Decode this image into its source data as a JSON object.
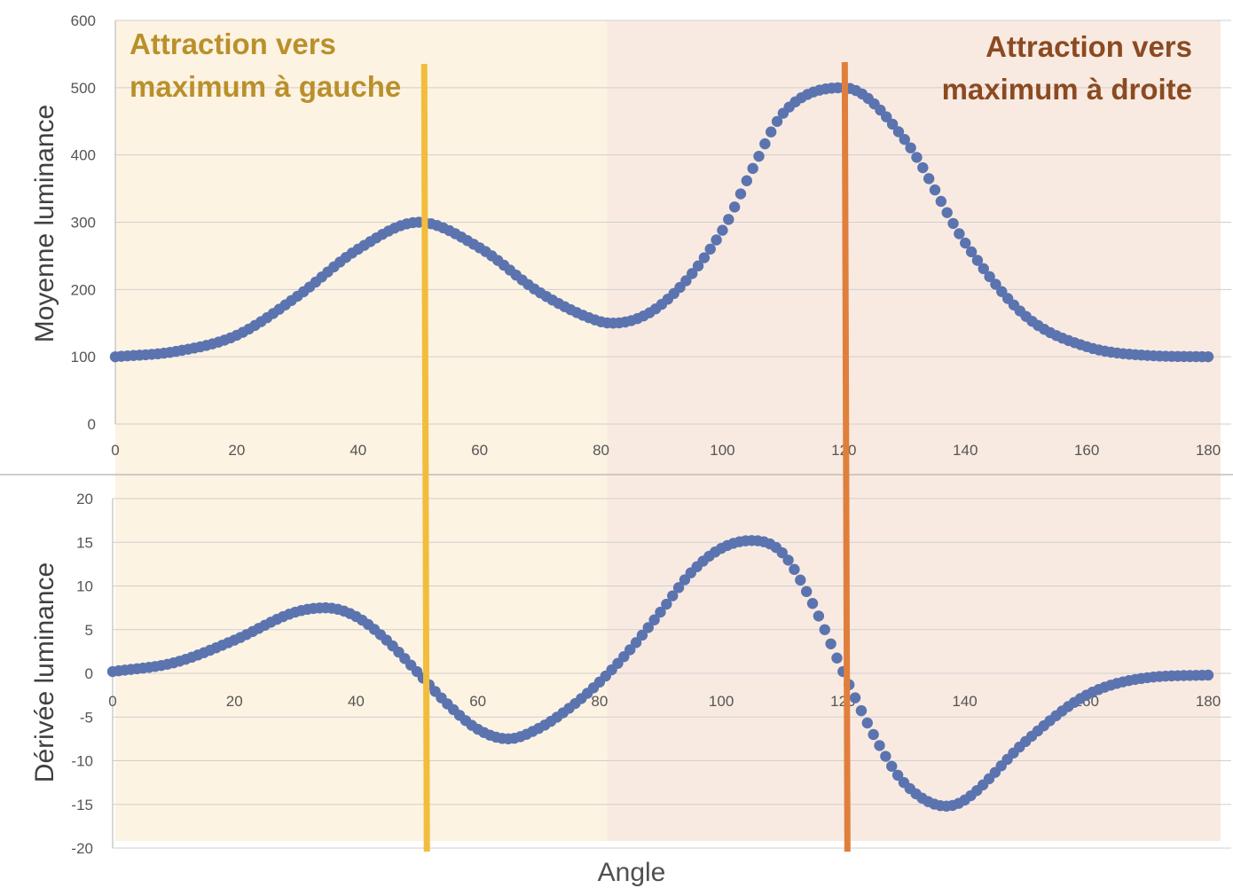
{
  "colors": {
    "left_region": "#fdf3e2",
    "right_region": "#f9eae1",
    "left_line": "#f2bd3c",
    "right_line": "#e07f3c",
    "points": "#5b74b0",
    "left_annotation": "#b9902a",
    "right_annotation": "#8b4a22",
    "grid": "#cfcfcf"
  },
  "annotations": {
    "left_line1": "Attraction vers",
    "left_line2": "maximum à gauche",
    "right_line1": "Attraction vers",
    "right_line2": "maximum à droite"
  },
  "regions": [
    {
      "name": "left",
      "x_from": 0,
      "x_to": 81
    },
    {
      "name": "right",
      "x_from": 81,
      "x_to": 180
    }
  ],
  "vertical_lines": [
    {
      "name": "left-maximum",
      "x": 50
    },
    {
      "name": "right-maximum",
      "x": 120
    }
  ],
  "x_title": "Angle",
  "chart_data": [
    {
      "type": "scatter",
      "ylabel": "Moyenne luminance",
      "xlim": [
        0,
        180
      ],
      "ylim": [
        0,
        600
      ],
      "xticks": [
        "0",
        "20",
        "40",
        "60",
        "80",
        "100",
        "120",
        "140",
        "160",
        "180"
      ],
      "yticks": [
        "0",
        "100",
        "200",
        "300",
        "400",
        "500",
        "600"
      ],
      "grid": true,
      "series": [
        {
          "x": [
            0,
            10,
            20,
            30,
            40,
            50,
            60,
            70,
            80,
            82,
            90,
            100,
            105,
            110,
            120,
            130,
            140,
            150,
            160,
            170,
            180
          ],
          "y": [
            100,
            108,
            132,
            190,
            260,
            300,
            262,
            195,
            152,
            150,
            178,
            288,
            380,
            462,
            500,
            423,
            269,
            160,
            115,
            102,
            100
          ]
        }
      ]
    },
    {
      "type": "scatter",
      "ylabel": "Dérivée luminance",
      "xlim": [
        0,
        180
      ],
      "ylim": [
        -20,
        20
      ],
      "xticks": [
        "0",
        "20",
        "40",
        "60",
        "80",
        "100",
        "120",
        "140",
        "160",
        "180"
      ],
      "yticks": [
        "-20",
        "-15",
        "-10",
        "-5",
        "0",
        "5",
        "10",
        "15",
        "20"
      ],
      "grid": true,
      "series": [
        {
          "x": [
            0,
            10,
            20,
            30,
            35,
            40,
            45,
            50,
            55,
            60,
            65,
            70,
            75,
            80,
            85,
            90,
            95,
            100,
            105,
            110,
            115,
            120,
            125,
            130,
            137,
            140,
            150,
            160,
            170,
            180
          ],
          "y": [
            0.2,
            1.2,
            3.8,
            7.0,
            7.5,
            6.5,
            3.8,
            0.2,
            -3.5,
            -6.4,
            -7.5,
            -6.3,
            -4.0,
            -1.0,
            2.7,
            7.0,
            11.5,
            14.3,
            15.2,
            13.8,
            8.0,
            0.2,
            -7.0,
            -12.5,
            -15.2,
            -14.5,
            -7.8,
            -2.5,
            -0.5,
            -0.2
          ]
        }
      ]
    }
  ]
}
